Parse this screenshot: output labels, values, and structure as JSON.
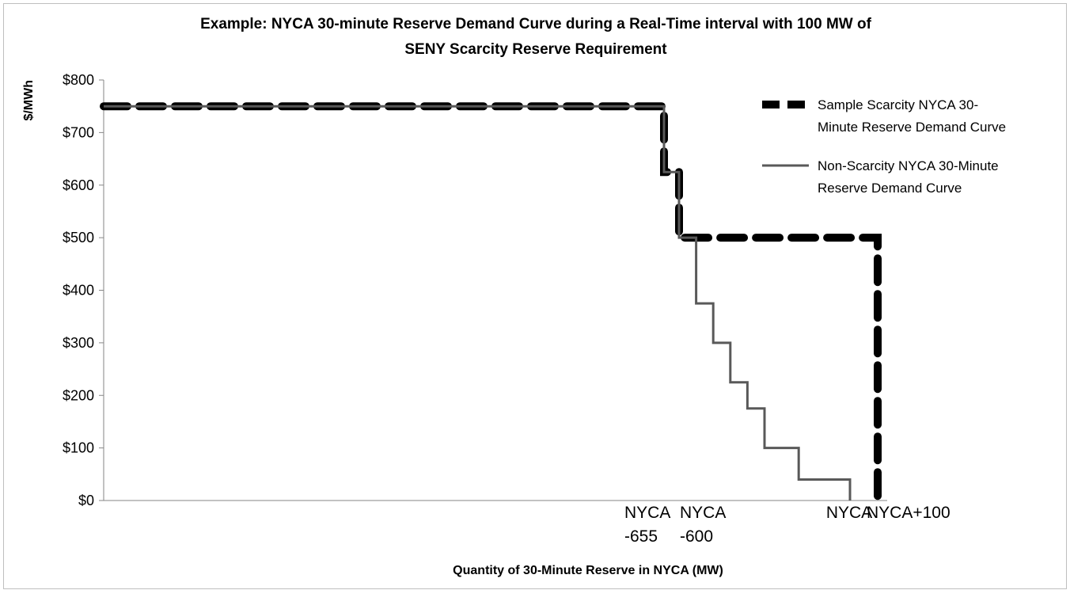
{
  "chart_data": {
    "type": "line",
    "title_lines": [
      "Example: NYCA 30-minute Reserve Demand Curve during a Real-Time interval with 100 MW of",
      "SENY Scarcity Reserve Requirement"
    ],
    "xlabel": "Quantity of 30-Minute Reserve in NYCA (MW)",
    "ylabel": "$/MWh",
    "ylim": [
      0,
      800
    ],
    "y_ticks": [
      0,
      100,
      200,
      300,
      400,
      500,
      600,
      700,
      800
    ],
    "y_tick_labels": [
      "$0",
      "$100",
      "$200",
      "$300",
      "$400",
      "$500",
      "$600",
      "$700",
      "$800"
    ],
    "x_tick_labels": [
      {
        "lines": [
          "NYCA",
          "-655"
        ],
        "x": -655
      },
      {
        "lines": [
          "NYCA",
          "-600"
        ],
        "x": -600
      },
      {
        "lines": [
          "NYCA"
        ],
        "x": 0
      },
      {
        "lines": [
          "NYCA+100"
        ],
        "x": 100
      }
    ],
    "legend_position": "right",
    "series": [
      {
        "name": "Sample Scarcity NYCA 30-Minute Reserve Demand Curve",
        "legend_lines": [
          "Sample Scarcity NYCA 30-",
          "Minute Reserve Demand Curve"
        ],
        "style": "dashed-thick",
        "color": "#000000",
        "points": [
          [
            -2700,
            750
          ],
          [
            -655,
            750
          ],
          [
            -655,
            625
          ],
          [
            -600,
            625
          ],
          [
            -600,
            500
          ],
          [
            100,
            500
          ],
          [
            100,
            0
          ]
        ]
      },
      {
        "name": "Non-Scarcity NYCA 30-Minute Reserve Demand Curve",
        "legend_lines": [
          "Non-Scarcity NYCA 30-Minute",
          "Reserve Demand Curve"
        ],
        "style": "solid",
        "color": "#595959",
        "points": [
          [
            -2700,
            750
          ],
          [
            -655,
            750
          ],
          [
            -655,
            625
          ],
          [
            -600,
            625
          ],
          [
            -600,
            500
          ],
          [
            -540,
            500
          ],
          [
            -540,
            375
          ],
          [
            -480,
            375
          ],
          [
            -480,
            300
          ],
          [
            -420,
            300
          ],
          [
            -420,
            225
          ],
          [
            -360,
            225
          ],
          [
            -360,
            175
          ],
          [
            -300,
            175
          ],
          [
            -300,
            100
          ],
          [
            -180,
            100
          ],
          [
            -180,
            40
          ],
          [
            0,
            40
          ],
          [
            0,
            0
          ]
        ]
      }
    ]
  }
}
